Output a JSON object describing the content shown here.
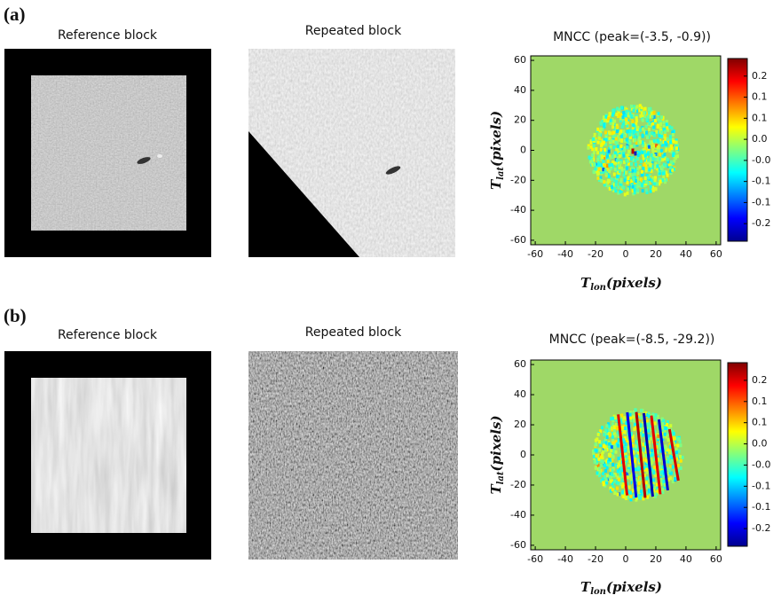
{
  "figure": {
    "panels": [
      {
        "label": "(a)",
        "reference_title": "Reference block",
        "repeated_title": "Repeated block",
        "map": {
          "title": "MNCC (peak=(-3.5, -0.9))",
          "xlabel": {
            "symbol": "T",
            "sub": "lon",
            "unit": "(pixels)"
          },
          "ylabel": {
            "symbol": "T",
            "sub": "lat",
            "unit": "(pixels)"
          },
          "xlim": [
            -63,
            63
          ],
          "ylim": [
            -63,
            63
          ],
          "xticks": [
            -60,
            -40,
            -20,
            0,
            20,
            40,
            60
          ],
          "yticks": [
            -60,
            -40,
            -20,
            0,
            20,
            40,
            60
          ],
          "clim": [
            -0.26,
            0.26
          ],
          "cticks": [
            {
              "value": 0.21,
              "label": "0.2"
            },
            {
              "value": 0.15,
              "label": "0.1"
            },
            {
              "value": 0.09,
              "label": "0.1"
            },
            {
              "value": 0.03,
              "label": "0.0"
            },
            {
              "value": -0.03,
              "label": "-0.0"
            },
            {
              "value": -0.09,
              "label": "-0.1"
            },
            {
              "value": -0.15,
              "label": "-0.1"
            },
            {
              "value": -0.21,
              "label": "-0.2"
            }
          ]
        }
      },
      {
        "label": "(b)",
        "reference_title": "Reference block",
        "repeated_title": "Repeated block",
        "map": {
          "title": "MNCC (peak=(-8.5, -29.2))",
          "xlabel": {
            "symbol": "T",
            "sub": "lon",
            "unit": "(pixels)"
          },
          "ylabel": {
            "symbol": "T",
            "sub": "lat",
            "unit": "(pixels)"
          },
          "xlim": [
            -63,
            63
          ],
          "ylim": [
            -63,
            63
          ],
          "xticks": [
            -60,
            -40,
            -20,
            0,
            20,
            40,
            60
          ],
          "yticks": [
            -60,
            -40,
            -20,
            0,
            20,
            40,
            60
          ],
          "clim": [
            -0.26,
            0.26
          ],
          "cticks": [
            {
              "value": 0.21,
              "label": "0.2"
            },
            {
              "value": 0.15,
              "label": "0.1"
            },
            {
              "value": 0.09,
              "label": "0.1"
            },
            {
              "value": 0.03,
              "label": "0.0"
            },
            {
              "value": -0.03,
              "label": "-0.0"
            },
            {
              "value": -0.09,
              "label": "-0.1"
            },
            {
              "value": -0.15,
              "label": "-0.1"
            },
            {
              "value": -0.21,
              "label": "-0.2"
            }
          ]
        }
      }
    ]
  }
}
